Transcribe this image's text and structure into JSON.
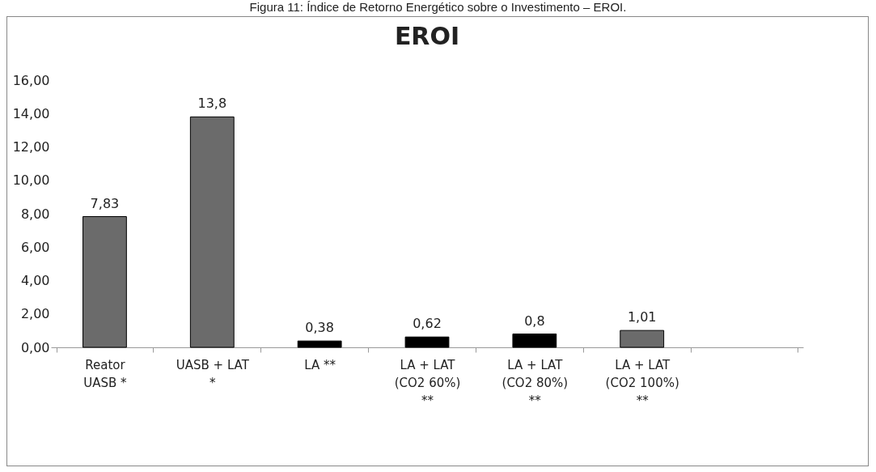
{
  "chart_data": {
    "type": "bar",
    "title": "EROI",
    "annotations": [
      "Figura 11: Índice de Retorno Energético sobre o Investimento – EROI."
    ],
    "categories": [
      "Reator UASB *",
      "UASB + LAT *",
      "LA **",
      "LA + LAT (CO2 60%) **",
      "LA + LAT (CO2  80%) **",
      "LA + LAT (CO2 100%) **",
      null
    ],
    "values": [
      7.83,
      13.8,
      0.38,
      0.62,
      0.8,
      1.01,
      null
    ],
    "colors": [
      "#6b6b6b",
      "#6b6b6b",
      "#000000",
      "#000000",
      "#000000",
      "#6b6b6b",
      "#000000"
    ],
    "value_labels": [
      "7,83",
      "13,8",
      "0,38",
      "0,62",
      "0,8",
      "1,01",
      null
    ],
    "ylim": [
      0,
      16
    ],
    "yticks": [
      {
        "value": 0,
        "label": "0,00"
      },
      {
        "value": 2,
        "label": "2,00"
      },
      {
        "value": 4,
        "label": "4,00"
      },
      {
        "value": 6,
        "label": "6,00"
      },
      {
        "value": 8,
        "label": "8,00"
      },
      {
        "value": 10,
        "label": "10,00"
      },
      {
        "value": 12,
        "label": "12,00"
      },
      {
        "value": 14,
        "label": "14,00"
      },
      {
        "value": 16,
        "label": "16,00"
      }
    ],
    "grid": false
  }
}
